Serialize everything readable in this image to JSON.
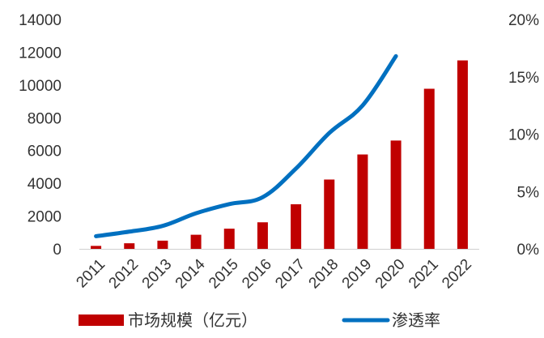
{
  "chart_data": {
    "type": "bar+line",
    "categories": [
      "2011",
      "2012",
      "2013",
      "2014",
      "2015",
      "2016",
      "2017",
      "2018",
      "2019",
      "2020",
      "2021",
      "2022"
    ],
    "series": [
      {
        "name": "市场规模（亿元）",
        "type": "bar",
        "axis": "left",
        "color": "#C00000",
        "values": [
          180,
          340,
          500,
          860,
          1230,
          1620,
          2720,
          4230,
          5760,
          6610,
          9770,
          11500
        ]
      },
      {
        "name": "渗透率",
        "type": "line",
        "axis": "right",
        "color": "#0070C0",
        "values": [
          1.1,
          1.5,
          2.0,
          3.1,
          3.9,
          4.5,
          7.0,
          10.1,
          12.5,
          16.8,
          null,
          null
        ]
      }
    ],
    "y_left": {
      "min": 0,
      "max": 14000,
      "ticks": [
        "0",
        "2000",
        "4000",
        "6000",
        "8000",
        "10000",
        "12000",
        "14000"
      ]
    },
    "y_right": {
      "min": 0,
      "max": 20,
      "ticks": [
        "0%",
        "5%",
        "10%",
        "15%",
        "20%"
      ]
    },
    "grid": false,
    "legend": "bottom"
  }
}
